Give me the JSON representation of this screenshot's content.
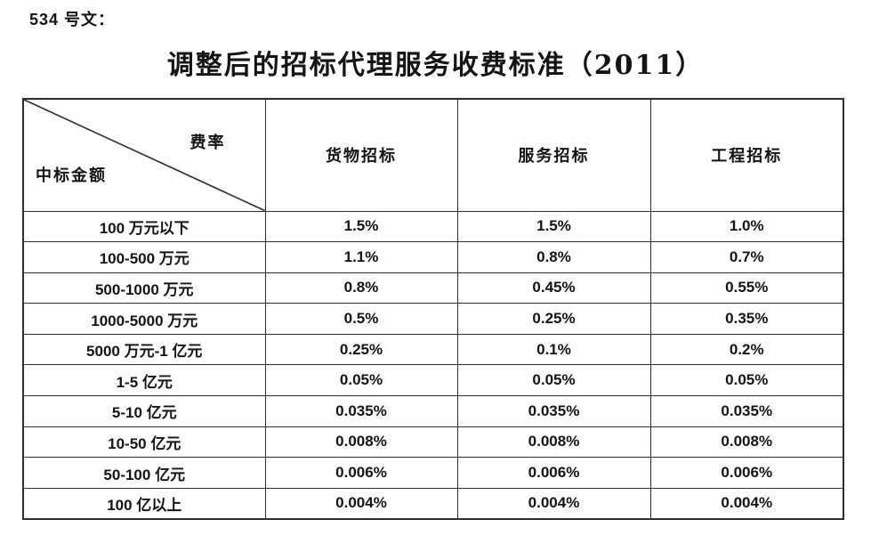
{
  "page": {
    "doc_label": "534 号文：",
    "title": "调整后的招标代理服务收费标准（2011）"
  },
  "table": {
    "corner": {
      "top_right": "费率",
      "bottom_left": "中标金额"
    },
    "columns": [
      "货物招标",
      "服务招标",
      "工程招标"
    ],
    "rows": [
      {
        "amount": "100 万元以下",
        "values": [
          "1.5%",
          "1.5%",
          "1.0%"
        ]
      },
      {
        "amount": "100-500 万元",
        "values": [
          "1.1%",
          "0.8%",
          "0.7%"
        ]
      },
      {
        "amount": "500-1000 万元",
        "values": [
          "0.8%",
          "0.45%",
          "0.55%"
        ]
      },
      {
        "amount": "1000-5000 万元",
        "values": [
          "0.5%",
          "0.25%",
          "0.35%"
        ]
      },
      {
        "amount": "5000 万元-1 亿元",
        "values": [
          "0.25%",
          "0.1%",
          "0.2%"
        ]
      },
      {
        "amount": "1-5 亿元",
        "values": [
          "0.05%",
          "0.05%",
          "0.05%"
        ]
      },
      {
        "amount": "5-10 亿元",
        "values": [
          "0.035%",
          "0.035%",
          "0.035%"
        ]
      },
      {
        "amount": "10-50 亿元",
        "values": [
          "0.008%",
          "0.008%",
          "0.008%"
        ]
      },
      {
        "amount": "50-100 亿元",
        "values": [
          "0.006%",
          "0.006%",
          "0.006%"
        ]
      },
      {
        "amount": "100 亿以上",
        "values": [
          "0.004%",
          "0.004%",
          "0.004%"
        ]
      }
    ],
    "border_color": "#2d2d2d",
    "text_color": "#141414"
  }
}
